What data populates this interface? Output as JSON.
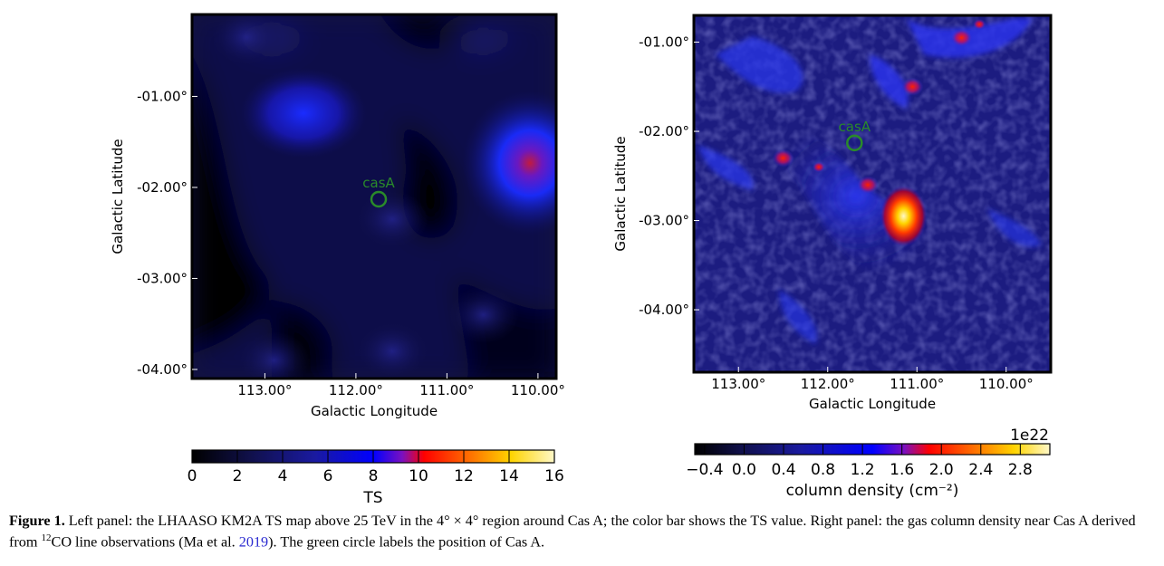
{
  "chart_data": [
    {
      "type": "heatmap",
      "name": "left-panel",
      "xlabel": "Galactic Longitude",
      "ylabel": "Galactic Latitude",
      "xticks": [
        113.0,
        112.0,
        111.0,
        110.0
      ],
      "xtick_labels": [
        "113.00°",
        "112.00°",
        "111.00°",
        "110.00°"
      ],
      "yticks": [
        -1.0,
        -2.0,
        -3.0,
        -4.0
      ],
      "ytick_labels": [
        "-01.00°",
        "-02.00°",
        "-03.00°",
        "-04.00°"
      ],
      "xlim": [
        113.8,
        109.8
      ],
      "ylim": [
        -4.1,
        -0.1
      ],
      "marker": {
        "label": "casA",
        "l": 111.75,
        "b": -2.13,
        "color": "#2a8a2a"
      },
      "colorbar": {
        "label": "TS",
        "range": [
          0,
          16
        ],
        "ticks": [
          0,
          2,
          4,
          6,
          8,
          10,
          12,
          14,
          16
        ],
        "tick_labels": [
          "0",
          "2",
          "4",
          "6",
          "8",
          "10",
          "12",
          "14",
          "16"
        ]
      },
      "features": [
        {
          "l": 112.45,
          "b": -1.05,
          "ts": 7.5
        },
        {
          "l": 110.0,
          "b": -1.72,
          "ts": 10.5
        },
        {
          "l": 113.2,
          "b": -0.35,
          "ts": 3.5
        },
        {
          "l": 111.6,
          "b": -2.35,
          "ts": 3.0
        },
        {
          "l": 112.9,
          "b": -3.9,
          "ts": 2.5
        },
        {
          "l": 111.6,
          "b": -3.8,
          "ts": 3.0
        },
        {
          "l": 110.6,
          "b": -3.4,
          "ts": 2.5
        }
      ]
    },
    {
      "type": "heatmap",
      "name": "right-panel",
      "xlabel": "Galactic Longitude",
      "ylabel": "Galactic Latitude",
      "xticks": [
        113.0,
        112.0,
        111.0,
        110.0
      ],
      "xtick_labels": [
        "113.00°",
        "112.00°",
        "111.00°",
        "110.00°"
      ],
      "yticks": [
        -1.0,
        -2.0,
        -3.0,
        -4.0
      ],
      "ytick_labels": [
        "-01.00°",
        "-02.00°",
        "-03.00°",
        "-04.00°"
      ],
      "xlim": [
        113.5,
        109.5
      ],
      "ylim": [
        -4.7,
        -0.7
      ],
      "marker": {
        "label": "casA",
        "l": 111.7,
        "b": -2.13,
        "color": "#2a8a2a"
      },
      "colorbar": {
        "label": "column density (cm⁻²)",
        "scale_label": "1e22",
        "range": [
          -0.5,
          3.1
        ],
        "ticks": [
          -0.4,
          0.0,
          0.4,
          0.8,
          1.2,
          1.6,
          2.0,
          2.4,
          2.8
        ],
        "tick_labels": [
          "−0.4",
          "0.0",
          "0.4",
          "0.8",
          "1.2",
          "1.6",
          "2.0",
          "2.4",
          "2.8"
        ]
      },
      "features": [
        {
          "l": 111.15,
          "b": -2.95,
          "n": 2.8
        },
        {
          "l": 111.55,
          "b": -2.6,
          "n": 2.0
        },
        {
          "l": 111.05,
          "b": -1.5,
          "n": 2.0
        },
        {
          "l": 110.5,
          "b": -0.95,
          "n": 1.9
        },
        {
          "l": 110.3,
          "b": -0.8,
          "n": 1.6
        },
        {
          "l": 112.1,
          "b": -2.4,
          "n": 1.6
        },
        {
          "l": 112.5,
          "b": -2.3,
          "n": 1.8
        }
      ]
    }
  ],
  "caption": {
    "label": "Figure 1.",
    "text_1": " Left panel: the LHAASO KM2A TS map above 25 TeV in the 4° × 4° region around Cas A; the color bar shows the TS value. Right panel: the gas column density near Cas A derived from ",
    "sup": "12",
    "text_2": "CO line observations (Ma et al. ",
    "cite_year": "2019",
    "text_3": "). The green circle labels the position of Cas A."
  }
}
